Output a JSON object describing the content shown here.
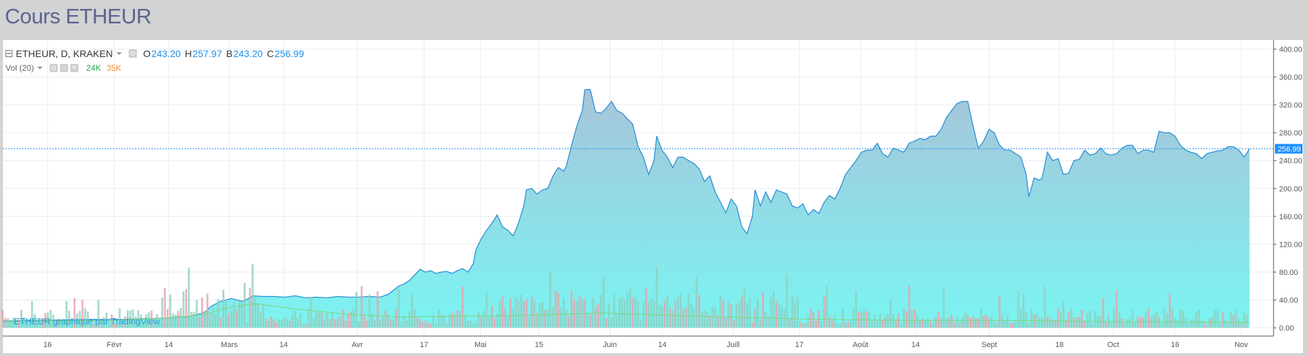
{
  "page": {
    "title": "Cours ETHEUR"
  },
  "legend": {
    "symbol": "ETHEUR, D, KRAKEN",
    "ohlc": [
      {
        "key": "O",
        "value": "243.20"
      },
      {
        "key": "H",
        "value": "257.97"
      },
      {
        "key": "B",
        "value": "243.20"
      },
      {
        "key": "C",
        "value": "256.99"
      }
    ],
    "volume_label": "Vol (20)",
    "volume_value_1": "24K",
    "volume_value_2": "35K"
  },
  "attribution": "ETHEUR graphique par TradingView",
  "colors": {
    "price_line": "#2b8fd6",
    "area_top": "#a7c4d9",
    "area_bottom": "#7af4f2",
    "volume_bar": "#8ecfbf",
    "volume_ma": "#7bd67b",
    "last_price_badge": "#1e90ff",
    "volume_value_1": "#26a65b",
    "volume_value_2": "#f0902c"
  },
  "chart_data": {
    "type": "area",
    "y_axis": {
      "min": 0,
      "max": 400,
      "ticks": [
        "0.00",
        "40.00",
        "80.00",
        "120.00",
        "160.00",
        "200.00",
        "240.00",
        "280.00",
        "320.00",
        "360.00",
        "400.00"
      ]
    },
    "x_axis": {
      "labels": [
        "16",
        "Févr",
        "14",
        "Mars",
        "14",
        "Avr",
        "17",
        "Mai",
        "15",
        "Juin",
        "14",
        "Juill",
        "17",
        "Août",
        "14",
        "Sept",
        "18",
        "Oct",
        "16",
        "Nov"
      ]
    },
    "last_price": {
      "value": 256.99,
      "label": "256.99"
    },
    "price": [
      [
        0,
        10
      ],
      [
        5,
        10
      ],
      [
        10,
        11
      ],
      [
        20,
        11
      ],
      [
        30,
        12
      ],
      [
        45,
        12
      ],
      [
        55,
        13
      ],
      [
        62,
        14
      ],
      [
        66,
        16
      ],
      [
        70,
        16
      ],
      [
        72,
        18
      ],
      [
        75,
        21
      ],
      [
        77,
        25
      ],
      [
        78,
        30
      ],
      [
        80,
        34
      ],
      [
        82,
        38
      ],
      [
        84,
        40
      ],
      [
        86,
        42
      ],
      [
        88,
        40
      ],
      [
        90,
        38
      ],
      [
        92,
        41
      ],
      [
        94,
        46
      ],
      [
        98,
        45
      ],
      [
        102,
        45
      ],
      [
        106,
        44
      ],
      [
        110,
        46
      ],
      [
        114,
        43
      ],
      [
        118,
        44
      ],
      [
        122,
        43
      ],
      [
        126,
        45
      ],
      [
        130,
        44
      ],
      [
        134,
        44
      ],
      [
        138,
        45
      ],
      [
        142,
        44
      ],
      [
        145,
        48
      ],
      [
        147,
        54
      ],
      [
        149,
        60
      ],
      [
        151,
        63
      ],
      [
        153,
        68
      ],
      [
        155,
        76
      ],
      [
        157,
        84
      ],
      [
        159,
        80
      ],
      [
        161,
        82
      ],
      [
        163,
        78
      ],
      [
        165,
        80
      ],
      [
        167,
        81
      ],
      [
        169,
        78
      ],
      [
        171,
        82
      ],
      [
        173,
        85
      ],
      [
        175,
        80
      ],
      [
        177,
        92
      ],
      [
        178,
        112
      ],
      [
        180,
        128
      ],
      [
        182,
        140
      ],
      [
        184,
        150
      ],
      [
        186,
        162
      ],
      [
        188,
        145
      ],
      [
        190,
        140
      ],
      [
        192,
        132
      ],
      [
        194,
        150
      ],
      [
        196,
        175
      ],
      [
        197,
        198
      ],
      [
        199,
        200
      ],
      [
        201,
        192
      ],
      [
        203,
        198
      ],
      [
        205,
        200
      ],
      [
        207,
        218
      ],
      [
        209,
        230
      ],
      [
        211,
        225
      ],
      [
        212,
        232
      ],
      [
        214,
        262
      ],
      [
        216,
        290
      ],
      [
        218,
        312
      ],
      [
        219,
        342
      ],
      [
        221,
        342
      ],
      [
        223,
        310
      ],
      [
        225,
        308
      ],
      [
        227,
        315
      ],
      [
        229,
        325
      ],
      [
        231,
        312
      ],
      [
        233,
        308
      ],
      [
        235,
        300
      ],
      [
        237,
        292
      ],
      [
        239,
        260
      ],
      [
        241,
        245
      ],
      [
        243,
        220
      ],
      [
        245,
        240
      ],
      [
        246,
        275
      ],
      [
        248,
        255
      ],
      [
        250,
        245
      ],
      [
        252,
        230
      ],
      [
        254,
        245
      ],
      [
        256,
        245
      ],
      [
        258,
        240
      ],
      [
        260,
        236
      ],
      [
        262,
        228
      ],
      [
        264,
        210
      ],
      [
        266,
        218
      ],
      [
        268,
        195
      ],
      [
        270,
        180
      ],
      [
        272,
        165
      ],
      [
        274,
        185
      ],
      [
        276,
        175
      ],
      [
        278,
        145
      ],
      [
        280,
        135
      ],
      [
        282,
        160
      ],
      [
        283,
        198
      ],
      [
        285,
        175
      ],
      [
        287,
        195
      ],
      [
        289,
        180
      ],
      [
        291,
        198
      ],
      [
        293,
        195
      ],
      [
        295,
        192
      ],
      [
        297,
        175
      ],
      [
        299,
        172
      ],
      [
        301,
        178
      ],
      [
        303,
        162
      ],
      [
        305,
        170
      ],
      [
        307,
        164
      ],
      [
        309,
        180
      ],
      [
        311,
        190
      ],
      [
        313,
        185
      ],
      [
        315,
        200
      ],
      [
        317,
        220
      ],
      [
        319,
        230
      ],
      [
        321,
        240
      ],
      [
        323,
        252
      ],
      [
        325,
        255
      ],
      [
        327,
        255
      ],
      [
        329,
        265
      ],
      [
        331,
        250
      ],
      [
        333,
        245
      ],
      [
        335,
        258
      ],
      [
        337,
        255
      ],
      [
        339,
        252
      ],
      [
        341,
        265
      ],
      [
        343,
        268
      ],
      [
        345,
        272
      ],
      [
        347,
        270
      ],
      [
        349,
        275
      ],
      [
        351,
        275
      ],
      [
        353,
        285
      ],
      [
        355,
        302
      ],
      [
        357,
        312
      ],
      [
        359,
        322
      ],
      [
        361,
        325
      ],
      [
        363,
        325
      ],
      [
        365,
        290
      ],
      [
        367,
        258
      ],
      [
        369,
        268
      ],
      [
        371,
        285
      ],
      [
        373,
        280
      ],
      [
        375,
        262
      ],
      [
        377,
        255
      ],
      [
        379,
        255
      ],
      [
        381,
        250
      ],
      [
        383,
        245
      ],
      [
        385,
        220
      ],
      [
        386,
        188
      ],
      [
        388,
        215
      ],
      [
        390,
        212
      ],
      [
        391,
        215
      ],
      [
        393,
        252
      ],
      [
        395,
        240
      ],
      [
        397,
        243
      ],
      [
        399,
        220
      ],
      [
        401,
        222
      ],
      [
        403,
        240
      ],
      [
        405,
        242
      ],
      [
        407,
        255
      ],
      [
        409,
        248
      ],
      [
        411,
        250
      ],
      [
        413,
        258
      ],
      [
        415,
        250
      ],
      [
        417,
        248
      ],
      [
        419,
        250
      ],
      [
        421,
        258
      ],
      [
        423,
        262
      ],
      [
        425,
        262
      ],
      [
        427,
        250
      ],
      [
        429,
        255
      ],
      [
        431,
        255
      ],
      [
        433,
        252
      ],
      [
        435,
        282
      ],
      [
        437,
        280
      ],
      [
        439,
        280
      ],
      [
        441,
        275
      ],
      [
        443,
        262
      ],
      [
        445,
        255
      ],
      [
        447,
        252
      ],
      [
        449,
        250
      ],
      [
        451,
        243
      ],
      [
        453,
        250
      ],
      [
        455,
        252
      ],
      [
        457,
        254
      ],
      [
        459,
        255
      ],
      [
        461,
        260
      ],
      [
        463,
        260
      ],
      [
        465,
        255
      ],
      [
        467,
        245
      ],
      [
        469,
        257
      ]
    ],
    "volume_ma": [
      [
        0,
        9
      ],
      [
        20,
        10
      ],
      [
        40,
        11
      ],
      [
        60,
        14
      ],
      [
        75,
        19
      ],
      [
        85,
        30
      ],
      [
        95,
        36
      ],
      [
        110,
        28
      ],
      [
        130,
        20
      ],
      [
        150,
        16
      ],
      [
        170,
        17
      ],
      [
        190,
        18
      ],
      [
        210,
        20
      ],
      [
        225,
        22
      ],
      [
        240,
        20
      ],
      [
        255,
        18
      ],
      [
        270,
        16
      ],
      [
        285,
        15
      ],
      [
        300,
        13
      ],
      [
        320,
        12
      ],
      [
        340,
        11
      ],
      [
        360,
        11
      ],
      [
        380,
        11
      ],
      [
        400,
        10
      ],
      [
        420,
        9
      ],
      [
        440,
        9
      ],
      [
        469,
        8
      ]
    ],
    "volume_seed": 17
  }
}
